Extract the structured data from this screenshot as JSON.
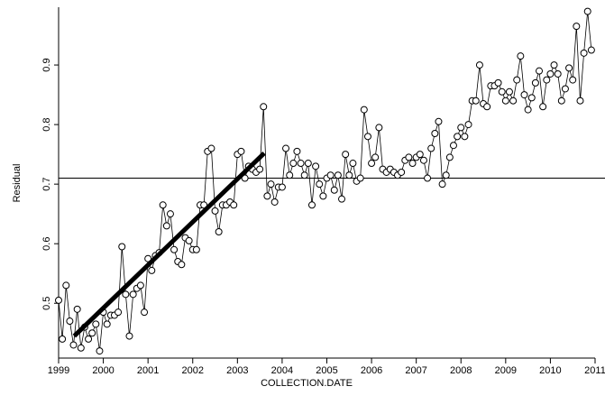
{
  "chart_data": {
    "type": "line",
    "x_label": "COLLECTION.DATE",
    "y_label": "Residual",
    "xlim": [
      1999,
      2011
    ],
    "ylim": [
      0.408,
      0.997
    ],
    "xticks": [
      1999,
      2000,
      2001,
      2002,
      2003,
      2004,
      2005,
      2006,
      2007,
      2008,
      2009,
      2010,
      2011
    ],
    "yticks": [
      0.5,
      0.6,
      0.7,
      0.8,
      0.9
    ],
    "reference_line": 0.71,
    "trend": {
      "x": [
        1999.35,
        2003.6
      ],
      "values": [
        0.445,
        0.752
      ]
    },
    "series": [
      {
        "color": "#000000",
        "x": [
          1999,
          1999.083,
          1999.167,
          1999.25,
          1999.333,
          1999.417,
          1999.5,
          1999.583,
          1999.667,
          1999.75,
          1999.833,
          1999.917,
          2000,
          2000.083,
          2000.167,
          2000.25,
          2000.333,
          2000.417,
          2000.5,
          2000.583,
          2000.667,
          2000.75,
          2000.833,
          2000.917,
          2001,
          2001.083,
          2001.167,
          2001.25,
          2001.333,
          2001.417,
          2001.5,
          2001.583,
          2001.667,
          2001.75,
          2001.833,
          2001.917,
          2002,
          2002.083,
          2002.167,
          2002.25,
          2002.333,
          2002.417,
          2002.5,
          2002.583,
          2002.667,
          2002.75,
          2002.833,
          2002.917,
          2003,
          2003.083,
          2003.167,
          2003.25,
          2003.333,
          2003.417,
          2003.5,
          2003.583,
          2003.667,
          2003.75,
          2003.833,
          2003.917,
          2004,
          2004.083,
          2004.167,
          2004.25,
          2004.333,
          2004.417,
          2004.5,
          2004.583,
          2004.667,
          2004.75,
          2004.833,
          2004.917,
          2005,
          2005.083,
          2005.167,
          2005.25,
          2005.333,
          2005.417,
          2005.5,
          2005.583,
          2005.667,
          2005.75,
          2005.833,
          2005.917,
          2006,
          2006.083,
          2006.167,
          2006.25,
          2006.333,
          2006.417,
          2006.5,
          2006.583,
          2006.667,
          2006.75,
          2006.833,
          2006.917,
          2007,
          2007.083,
          2007.167,
          2007.25,
          2007.333,
          2007.417,
          2007.5,
          2007.583,
          2007.667,
          2007.75,
          2007.833,
          2007.917,
          2008,
          2008.083,
          2008.167,
          2008.25,
          2008.333,
          2008.417,
          2008.5,
          2008.583,
          2008.667,
          2008.75,
          2008.833,
          2008.917,
          2009,
          2009.083,
          2009.167,
          2009.25,
          2009.333,
          2009.417,
          2009.5,
          2009.583,
          2009.667,
          2009.75,
          2009.833,
          2009.917,
          2010,
          2010.083,
          2010.167,
          2010.25,
          2010.333,
          2010.417,
          2010.5,
          2010.583,
          2010.667,
          2010.75,
          2010.833,
          2010.917
        ],
        "values": [
          0.505,
          0.44,
          0.53,
          0.47,
          0.43,
          0.49,
          0.425,
          0.46,
          0.44,
          0.45,
          0.465,
          0.42,
          0.485,
          0.465,
          0.48,
          0.48,
          0.485,
          0.595,
          0.515,
          0.445,
          0.515,
          0.525,
          0.53,
          0.485,
          0.575,
          0.555,
          0.58,
          0.585,
          0.665,
          0.63,
          0.65,
          0.59,
          0.57,
          0.565,
          0.61,
          0.605,
          0.59,
          0.59,
          0.665,
          0.665,
          0.755,
          0.76,
          0.655,
          0.62,
          0.665,
          0.665,
          0.67,
          0.665,
          0.75,
          0.755,
          0.71,
          0.73,
          0.725,
          0.72,
          0.725,
          0.83,
          0.68,
          0.7,
          0.67,
          0.695,
          0.695,
          0.76,
          0.715,
          0.735,
          0.755,
          0.735,
          0.715,
          0.735,
          0.665,
          0.73,
          0.7,
          0.68,
          0.71,
          0.715,
          0.69,
          0.715,
          0.675,
          0.75,
          0.715,
          0.735,
          0.705,
          0.71,
          0.825,
          0.78,
          0.735,
          0.745,
          0.795,
          0.725,
          0.72,
          0.725,
          0.72,
          0.715,
          0.72,
          0.74,
          0.745,
          0.735,
          0.745,
          0.75,
          0.74,
          0.71,
          0.76,
          0.785,
          0.805,
          0.7,
          0.715,
          0.745,
          0.765,
          0.78,
          0.795,
          0.78,
          0.8,
          0.84,
          0.84,
          0.9,
          0.835,
          0.83,
          0.865,
          0.865,
          0.87,
          0.855,
          0.84,
          0.855,
          0.84,
          0.875,
          0.915,
          0.85,
          0.825,
          0.845,
          0.87,
          0.89,
          0.83,
          0.875,
          0.885,
          0.9,
          0.885,
          0.84,
          0.86,
          0.895,
          0.875,
          0.965,
          0.84,
          0.92,
          0.99,
          0.925
        ]
      }
    ]
  }
}
